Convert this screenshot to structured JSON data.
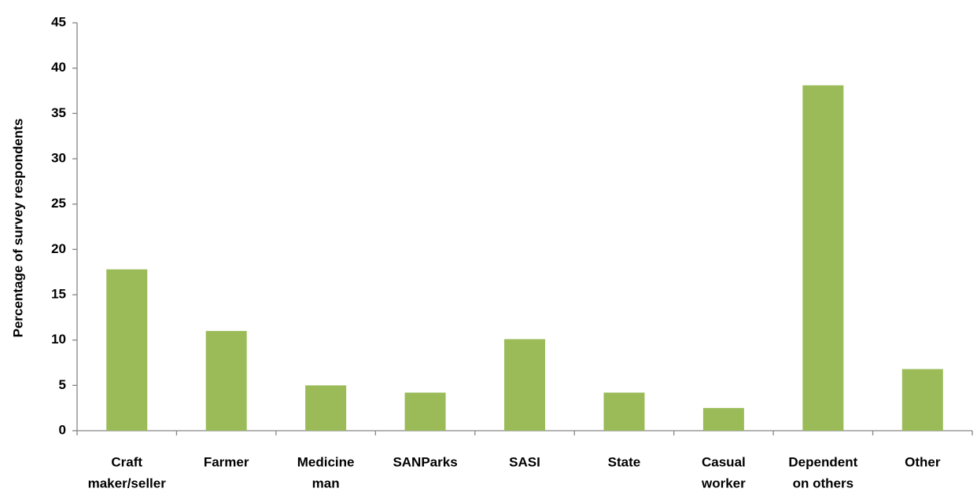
{
  "chart_data": {
    "type": "bar",
    "y_label": "Percentage of survey respondents",
    "categories": [
      [
        "Craft",
        "maker/seller"
      ],
      [
        "Farmer"
      ],
      [
        "Medicine",
        "man"
      ],
      [
        "SANParks"
      ],
      [
        "SASI"
      ],
      [
        "State"
      ],
      [
        "Casual",
        "worker"
      ],
      [
        "Dependent",
        "on others"
      ],
      [
        "Other"
      ]
    ],
    "values": [
      17.8,
      11.0,
      5.0,
      4.2,
      10.1,
      4.2,
      2.5,
      38.1,
      6.8
    ],
    "color": "#9bbb59",
    "ylim": [
      0,
      45
    ],
    "yticks": [
      0,
      5,
      10,
      15,
      20,
      25,
      30,
      35,
      40,
      45
    ],
    "grid": false
  }
}
